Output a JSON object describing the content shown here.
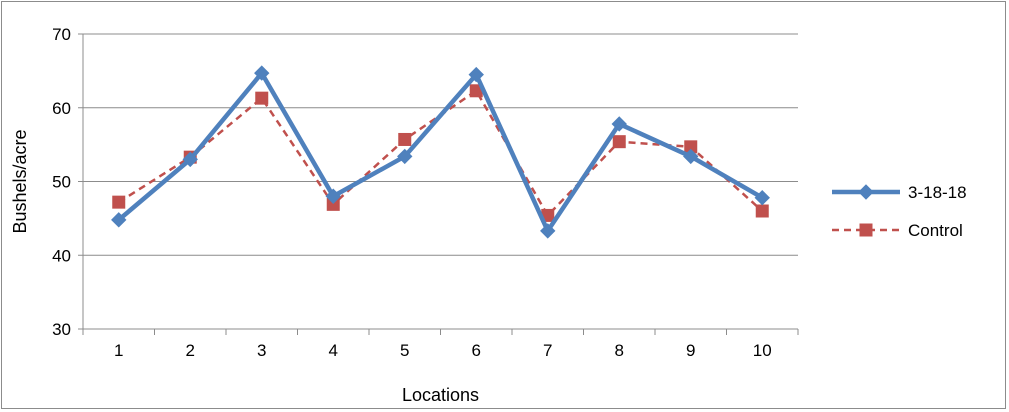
{
  "chart_data": {
    "type": "line",
    "categories": [
      "1",
      "2",
      "3",
      "4",
      "5",
      "6",
      "7",
      "8",
      "9",
      "10"
    ],
    "xlabel": "Locations",
    "ylabel": "Bushels/acre",
    "ylim": [
      30,
      70
    ],
    "yticks": [
      30,
      40,
      50,
      60,
      70
    ],
    "grid": true,
    "legend_position": "right",
    "series": [
      {
        "name": "3-18-18",
        "values": [
          44.8,
          53.0,
          64.7,
          48.0,
          53.4,
          64.5,
          43.3,
          57.8,
          53.4,
          47.8
        ],
        "color": "#4f81bd",
        "marker": "diamond",
        "line_style": "solid"
      },
      {
        "name": "Control",
        "values": [
          47.2,
          53.3,
          61.3,
          46.9,
          55.7,
          62.3,
          45.4,
          55.4,
          54.7,
          46.0
        ],
        "color": "#c0504d",
        "marker": "square",
        "line_style": "dashed"
      }
    ]
  }
}
